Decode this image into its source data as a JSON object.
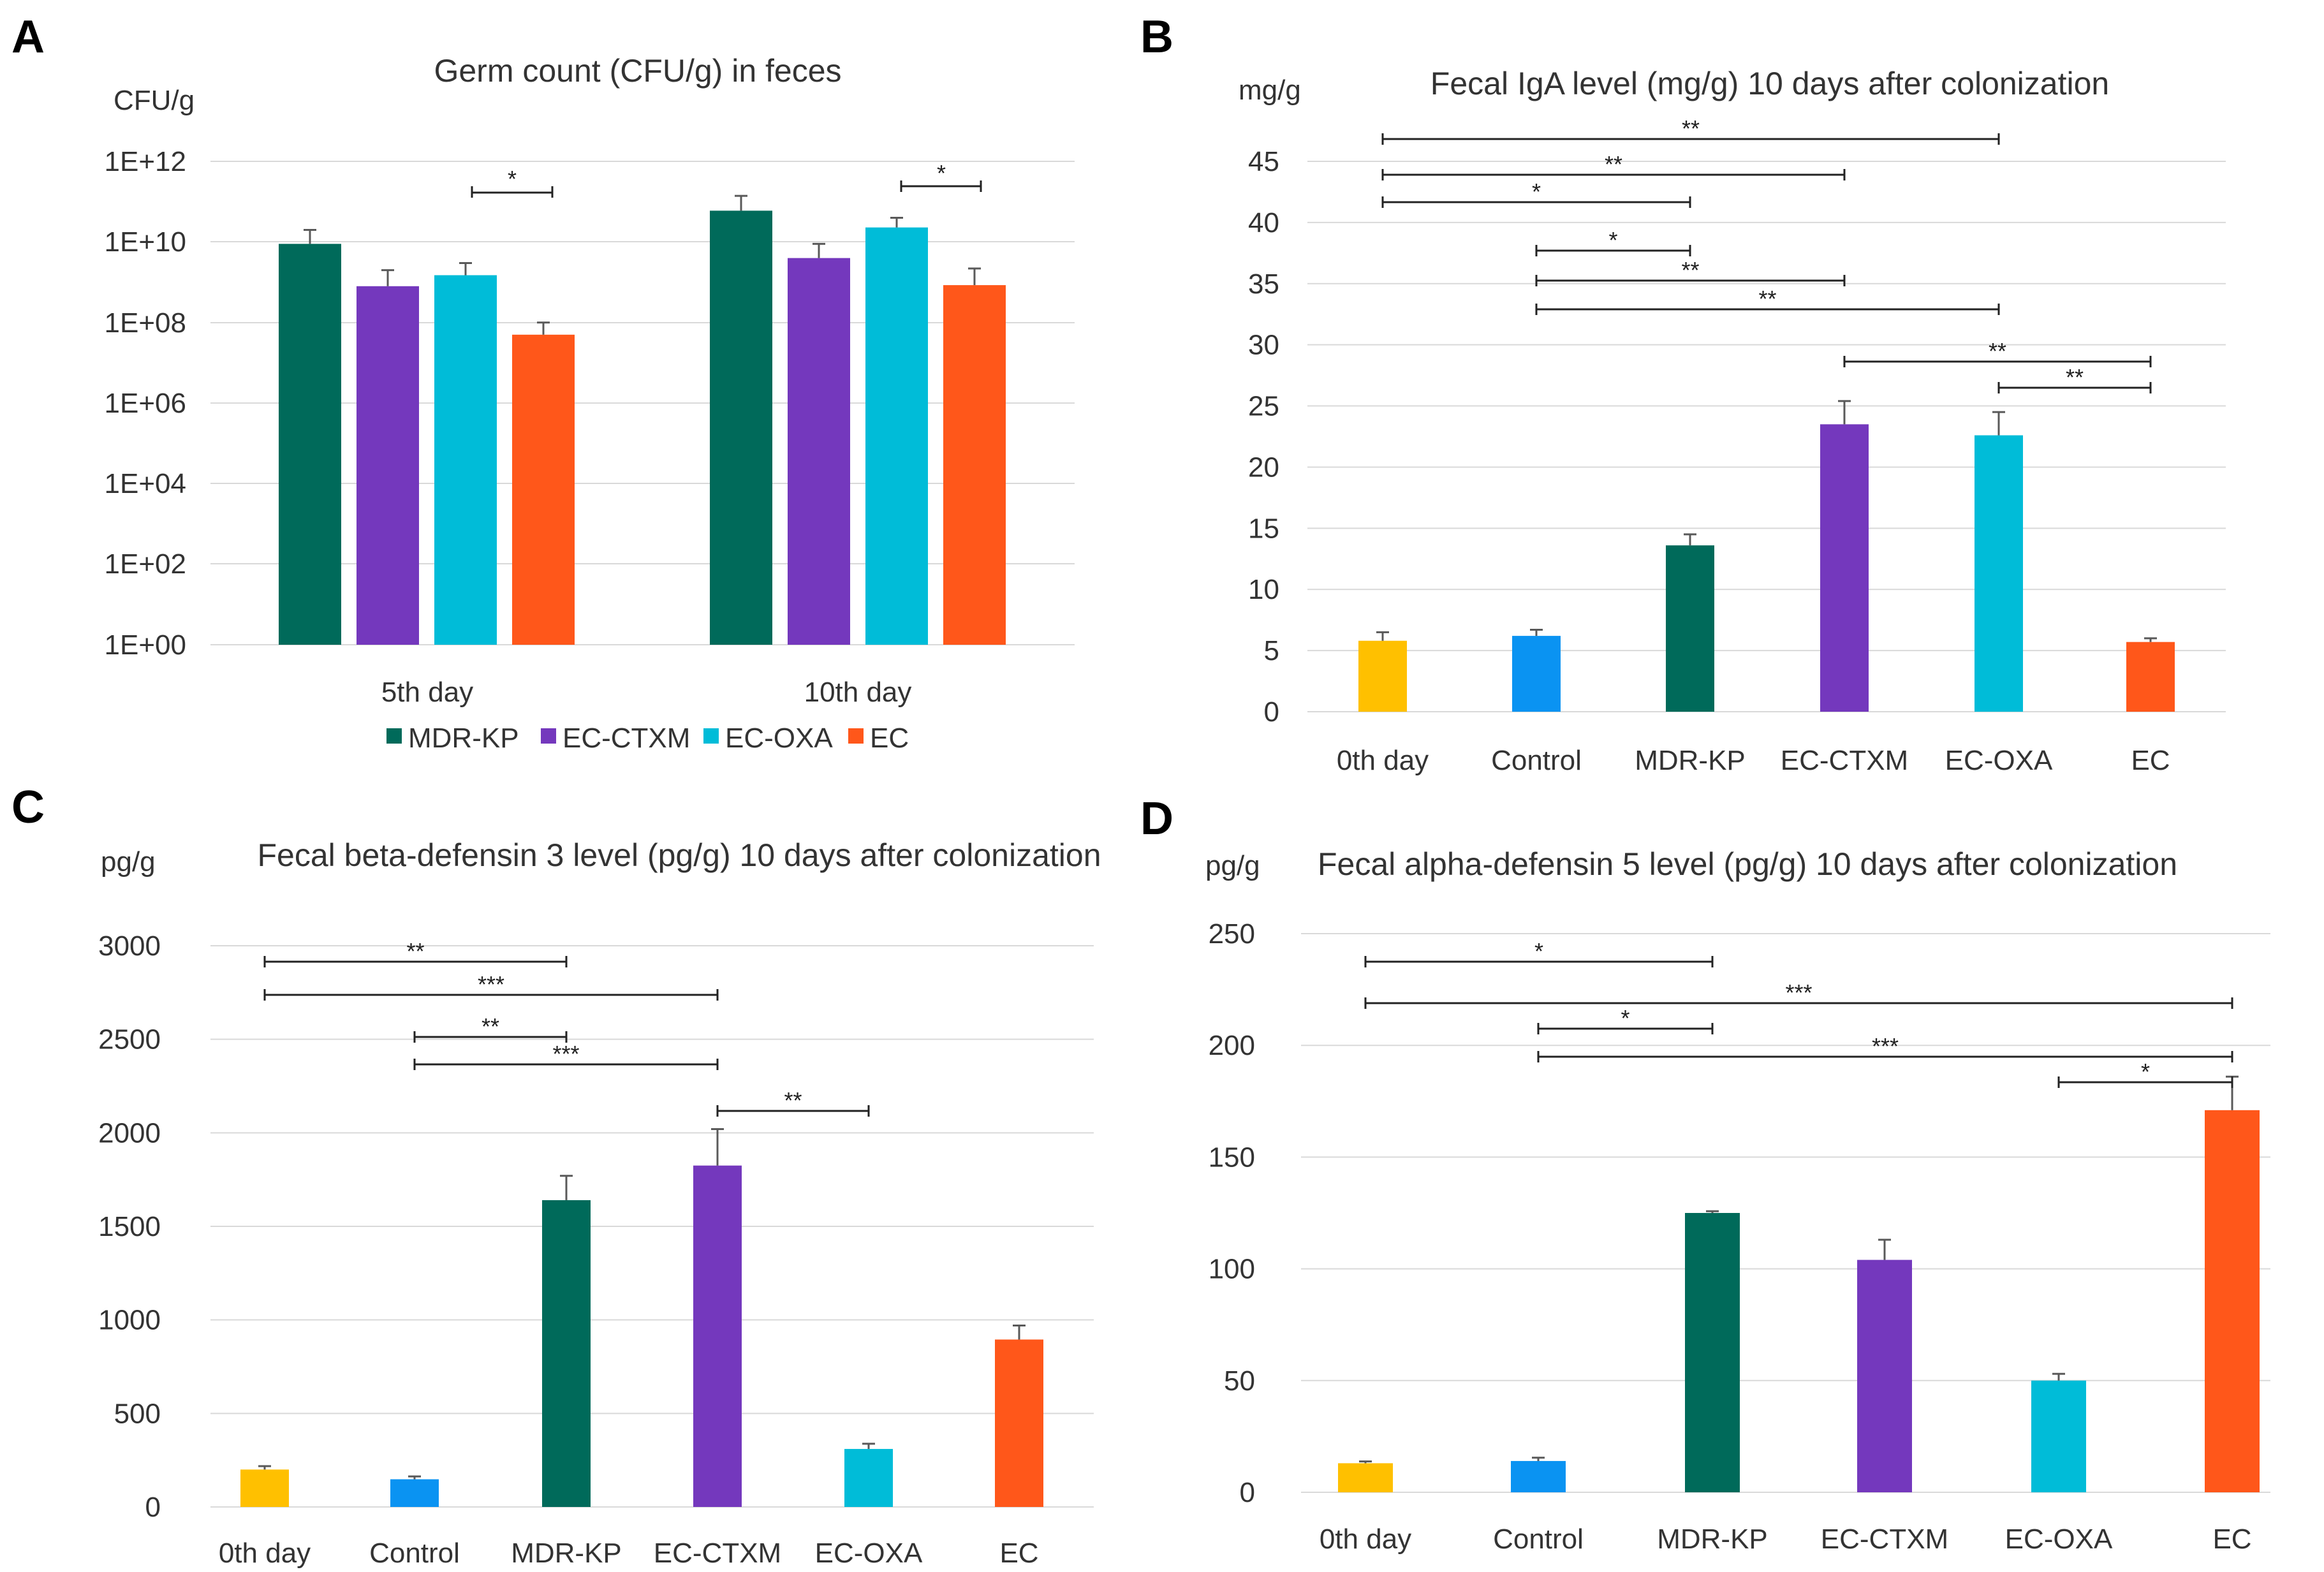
{
  "colors": {
    "0th day": "#ffc000",
    "Control": "#0a93f2",
    "MDR-KP": "#006a5a",
    "EC-CTXM": "#7438bd",
    "EC-OXA": "#00bcd8",
    "EC": "#ff571a"
  },
  "chart_data": [
    {
      "panel": "A",
      "type": "bar",
      "title": "Germ count (CFU/g) in feces",
      "ylabel": "CFU/g",
      "yscale": "log",
      "ylim": [
        1,
        1000000000000.0
      ],
      "yticks": [
        "1E+00",
        "1E+02",
        "1E+04",
        "1E+06",
        "1E+08",
        "1E+10",
        "1E+12"
      ],
      "categories": [
        "5th day",
        "10th day"
      ],
      "series": [
        {
          "name": "MDR-KP",
          "values": [
            9000000000.0,
            60000000000.0
          ],
          "errors_upper": [
            20000000000.0,
            140000000000.0
          ]
        },
        {
          "name": "EC-CTXM",
          "values": [
            800000000.0,
            4000000000.0
          ],
          "errors_upper": [
            2000000000.0,
            9000000000.0
          ]
        },
        {
          "name": "EC-OXA",
          "values": [
            1500000000.0,
            23000000000.0
          ],
          "errors_upper": [
            3000000000.0,
            40000000000.0
          ]
        },
        {
          "name": "EC",
          "values": [
            50000000.0,
            850000000.0
          ],
          "errors_upper": [
            100000000.0,
            2200000000.0
          ]
        }
      ],
      "significance": [
        {
          "from": "EC-OXA",
          "to": "EC",
          "group": "5th day",
          "label": "*"
        },
        {
          "from": "EC-OXA",
          "to": "EC",
          "group": "10th day",
          "label": "*"
        }
      ],
      "legend": [
        "MDR-KP",
        "EC-CTXM",
        "EC-OXA",
        "EC"
      ],
      "legend_position": "bottom"
    },
    {
      "panel": "B",
      "type": "bar",
      "title": "Fecal IgA level (mg/g) 10 days after colonization",
      "ylabel": "mg/g",
      "ylim": [
        0,
        45
      ],
      "yticks": [
        "0",
        "5",
        "10",
        "15",
        "20",
        "25",
        "30",
        "35",
        "40",
        "45"
      ],
      "categories": [
        "0th day",
        "Control",
        "MDR-KP",
        "EC-CTXM",
        "EC-OXA",
        "EC"
      ],
      "values": [
        5.8,
        6.2,
        13.6,
        23.5,
        22.6,
        5.7
      ],
      "errors": [
        0.7,
        0.5,
        0.9,
        1.9,
        1.9,
        0.3
      ],
      "significance": [
        {
          "from": 0,
          "to": 4,
          "label": "**"
        },
        {
          "from": 0,
          "to": 3,
          "label": "**"
        },
        {
          "from": 0,
          "to": 2,
          "label": "*"
        },
        {
          "from": 1,
          "to": 2,
          "label": "*"
        },
        {
          "from": 1,
          "to": 3,
          "label": "**"
        },
        {
          "from": 1,
          "to": 4,
          "label": "**"
        },
        {
          "from": 3,
          "to": 5,
          "label": "**"
        },
        {
          "from": 4,
          "to": 5,
          "label": "**"
        }
      ]
    },
    {
      "panel": "C",
      "type": "bar",
      "title": "Fecal beta-defensin 3 level (pg/g) 10 days after colonization",
      "ylabel": "pg/g",
      "ylim": [
        0,
        3000
      ],
      "yticks": [
        "0",
        "500",
        "1000",
        "1500",
        "2000",
        "2500",
        "3000"
      ],
      "categories": [
        "0th day",
        "Control",
        "MDR-KP",
        "EC-CTXM",
        "EC-OXA",
        "EC"
      ],
      "values": [
        200,
        148,
        1640,
        1825,
        310,
        895
      ],
      "errors": [
        18,
        15,
        130,
        195,
        28,
        75
      ],
      "significance": [
        {
          "from": 0,
          "to": 2,
          "label": "**"
        },
        {
          "from": 0,
          "to": 3,
          "label": "***"
        },
        {
          "from": 1,
          "to": 2,
          "label": "**"
        },
        {
          "from": 1,
          "to": 3,
          "label": "***"
        },
        {
          "from": 3,
          "to": 4,
          "label": "**"
        }
      ]
    },
    {
      "panel": "D",
      "type": "bar",
      "title": "Fecal alpha-defensin 5 level (pg/g) 10 days after colonization",
      "ylabel": "pg/g",
      "ylim": [
        0,
        250
      ],
      "yticks": [
        "0",
        "50",
        "100",
        "150",
        "200",
        "250"
      ],
      "categories": [
        "0th day",
        "Control",
        "MDR-KP",
        "EC-CTXM",
        "EC-OXA",
        "EC"
      ],
      "values": [
        13,
        14,
        125,
        104,
        50,
        171
      ],
      "errors": [
        0.8,
        1.5,
        0.8,
        9,
        3,
        15
      ],
      "significance": [
        {
          "from": 0,
          "to": 2,
          "label": "*"
        },
        {
          "from": 0,
          "to": 5,
          "label": "***"
        },
        {
          "from": 1,
          "to": 2,
          "label": "*"
        },
        {
          "from": 1,
          "to": 5,
          "label": "***"
        },
        {
          "from": 4,
          "to": 5,
          "label": "*"
        }
      ]
    }
  ]
}
